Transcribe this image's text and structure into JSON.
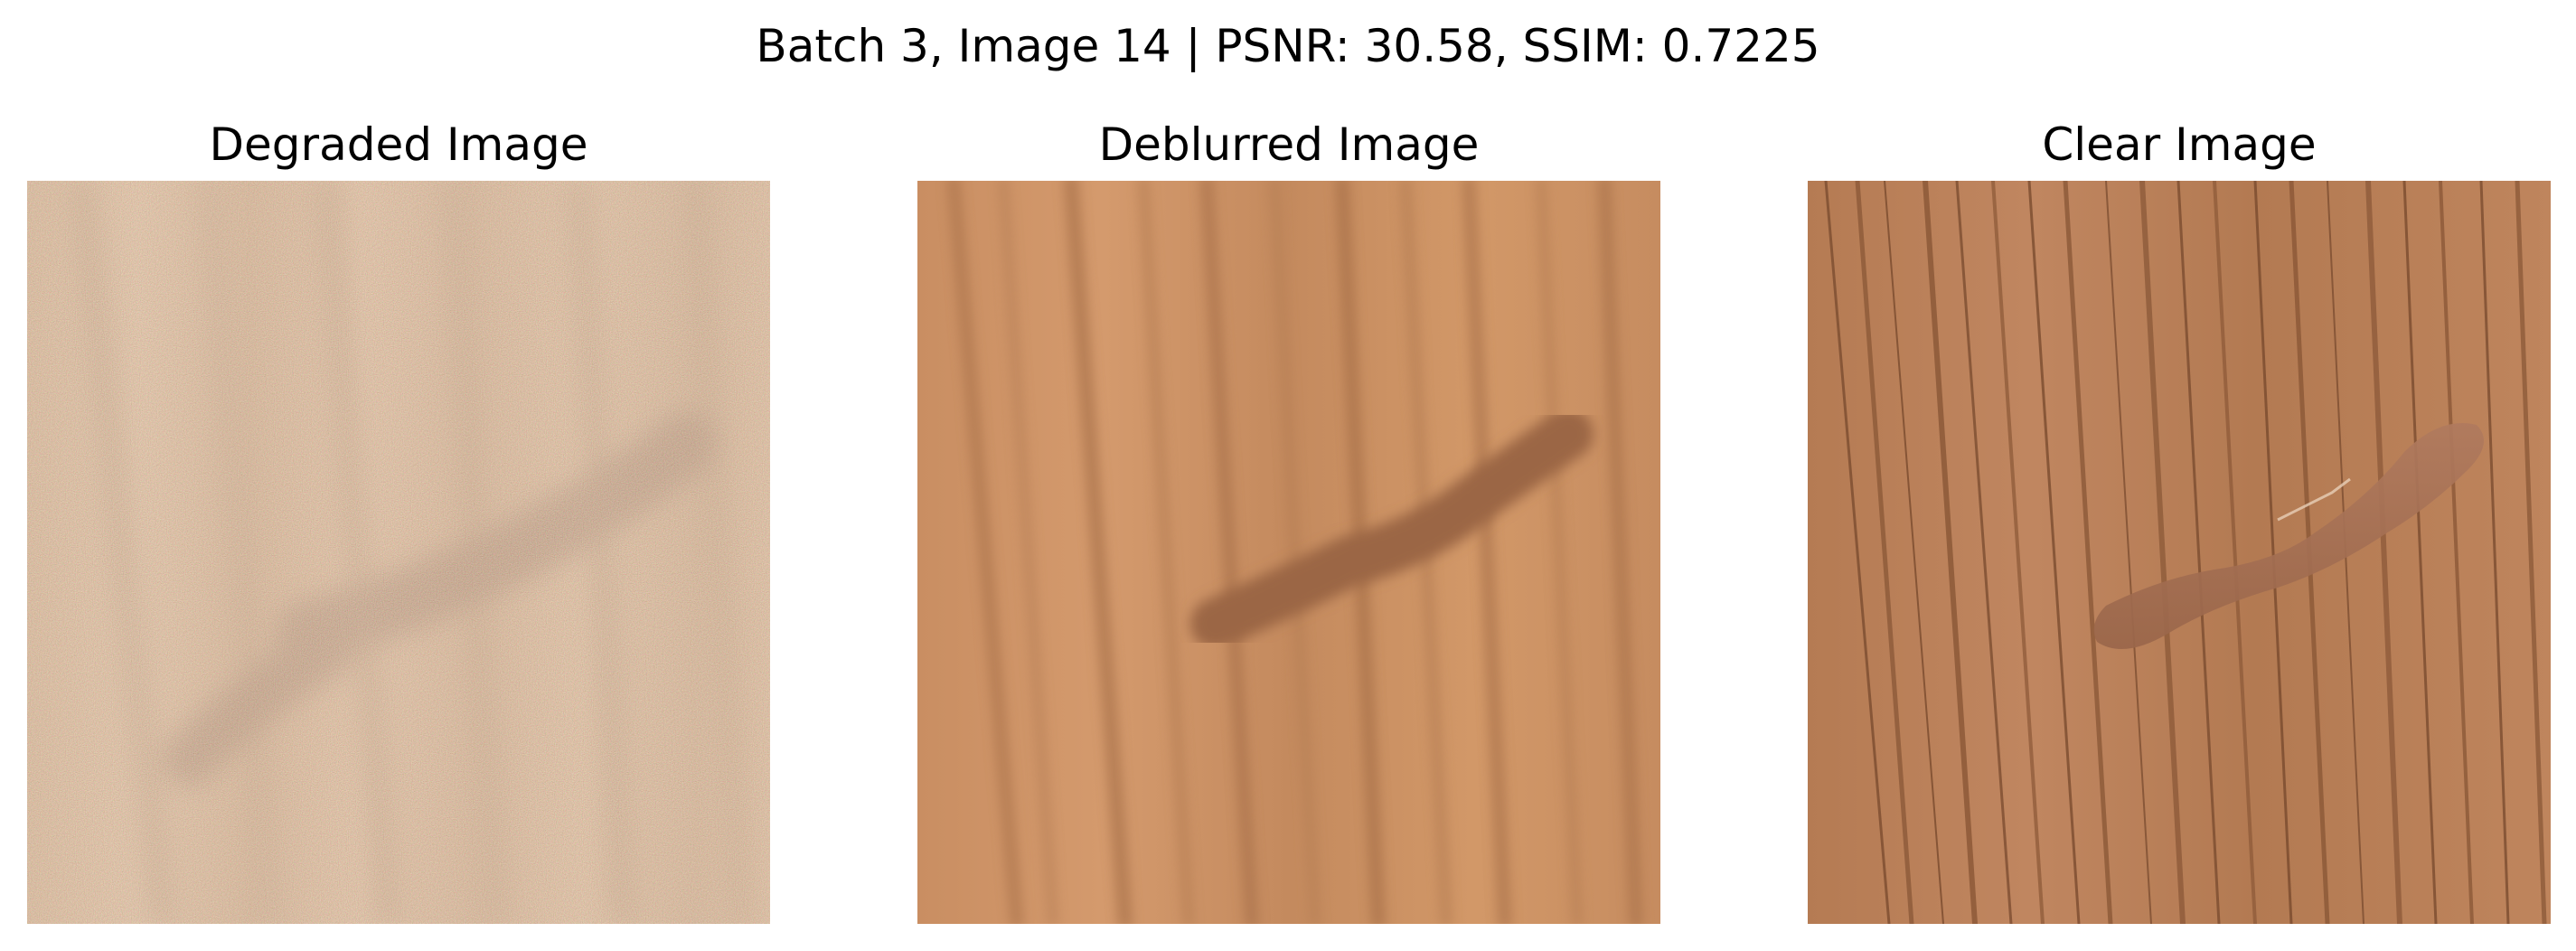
{
  "figure": {
    "title": "Batch 3, Image 14 | PSNR: 30.58, SSIM: 0.7225"
  },
  "panels": [
    {
      "title": "Degraded Image",
      "image": "noisy-grainy-wood-texture-with-blurred-dark-streak",
      "base_color": "#c9a06d"
    },
    {
      "title": "Deblurred Image",
      "image": "smoothed-wood-texture-with-dark-streak",
      "base_color": "#c98f63"
    },
    {
      "title": "Clear Image",
      "image": "sharp-oak-wood-grain-with-glossy-stain",
      "base_color": "#b97f56"
    }
  ]
}
